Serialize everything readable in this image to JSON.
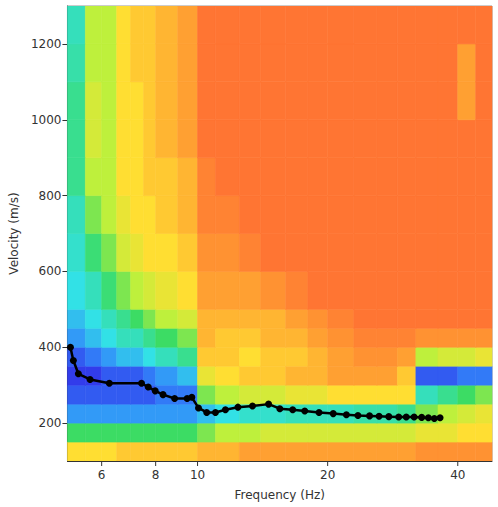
{
  "chart_data": {
    "type": "heatmap",
    "xlabel": "Frequency (Hz)",
    "ylabel": "Velocity (m/s)",
    "log": "x",
    "grid": false,
    "xlim": [
      5,
      48
    ],
    "xticks": [
      6,
      8,
      10,
      20,
      40
    ],
    "ylim": [
      100,
      1300
    ],
    "yticks": [
      200,
      400,
      600,
      800,
      1000,
      1200
    ],
    "zlim": [
      0,
      1
    ],
    "x_edges": [
      5,
      5.5,
      6,
      6.5,
      7,
      7.5,
      8,
      9,
      10,
      11,
      12.5,
      14,
      16,
      18,
      20,
      23,
      26,
      29,
      32,
      36,
      40,
      44,
      48
    ],
    "y_edges": [
      100,
      150,
      200,
      250,
      300,
      350,
      400,
      450,
      500,
      600,
      700,
      800,
      900,
      1000,
      1100,
      1200,
      1300
    ],
    "z": [
      [
        0.35,
        0.35,
        0.35,
        0.3,
        0.3,
        0.3,
        0.3,
        0.3,
        0.25,
        0.25,
        0.2,
        0.2,
        0.2,
        0.2,
        0.2,
        0.2,
        0.2,
        0.2,
        0.15,
        0.15,
        0.15,
        0.15
      ],
      [
        0.6,
        0.6,
        0.6,
        0.6,
        0.6,
        0.6,
        0.6,
        0.6,
        0.55,
        0.5,
        0.5,
        0.45,
        0.45,
        0.45,
        0.45,
        0.45,
        0.45,
        0.45,
        0.4,
        0.4,
        0.35,
        0.35
      ],
      [
        0.85,
        0.85,
        0.85,
        0.85,
        0.85,
        0.85,
        0.85,
        0.85,
        0.8,
        0.75,
        0.72,
        0.72,
        0.7,
        0.7,
        0.7,
        0.68,
        0.68,
        0.65,
        0.55,
        0.5,
        0.45,
        0.4
      ],
      [
        0.95,
        0.95,
        0.95,
        0.95,
        0.95,
        0.95,
        0.9,
        0.9,
        0.55,
        0.5,
        0.45,
        0.45,
        0.4,
        0.4,
        0.35,
        0.35,
        0.35,
        0.35,
        0.7,
        0.65,
        0.6,
        0.55
      ],
      [
        1,
        1,
        0.95,
        0.95,
        0.95,
        0.9,
        0.85,
        0.8,
        0.4,
        0.35,
        0.3,
        0.3,
        0.25,
        0.25,
        0.2,
        0.2,
        0.2,
        0.3,
        0.95,
        0.95,
        0.9,
        0.9
      ],
      [
        0.95,
        0.9,
        0.85,
        0.8,
        0.8,
        0.75,
        0.7,
        0.65,
        0.3,
        0.3,
        0.35,
        0.3,
        0.3,
        0.25,
        0.2,
        0.15,
        0.15,
        0.2,
        0.5,
        0.45,
        0.45,
        0.4
      ],
      [
        0.85,
        0.8,
        0.75,
        0.7,
        0.7,
        0.65,
        0.6,
        0.55,
        0.25,
        0.3,
        0.3,
        0.25,
        0.25,
        0.2,
        0.15,
        0.1,
        0.1,
        0.1,
        0.15,
        0.15,
        0.15,
        0.15
      ],
      [
        0.8,
        0.75,
        0.7,
        0.65,
        0.6,
        0.55,
        0.5,
        0.45,
        0.25,
        0.25,
        0.25,
        0.25,
        0.2,
        0.15,
        0.1,
        0.05,
        0.05,
        0.05,
        0.05,
        0.05,
        0.05,
        0.05
      ],
      [
        0.75,
        0.7,
        0.62,
        0.55,
        0.5,
        0.45,
        0.4,
        0.35,
        0.2,
        0.2,
        0.2,
        0.15,
        0.1,
        0.05,
        0.05,
        0.05,
        0.05,
        0.05,
        0.05,
        0.05,
        0.05,
        0.05
      ],
      [
        0.72,
        0.62,
        0.55,
        0.45,
        0.4,
        0.35,
        0.35,
        0.3,
        0.15,
        0.15,
        0.1,
        0.05,
        0.05,
        0.05,
        0.05,
        0.05,
        0.05,
        0.05,
        0.05,
        0.05,
        0.05,
        0.05
      ],
      [
        0.7,
        0.55,
        0.5,
        0.4,
        0.35,
        0.35,
        0.3,
        0.25,
        0.1,
        0.1,
        0.05,
        0.05,
        0.05,
        0.05,
        0.05,
        0.05,
        0.05,
        0.05,
        0.05,
        0.05,
        0.05,
        0.05
      ],
      [
        0.65,
        0.5,
        0.5,
        0.35,
        0.35,
        0.3,
        0.3,
        0.25,
        0.1,
        0.05,
        0.05,
        0.05,
        0.05,
        0.05,
        0.05,
        0.05,
        0.05,
        0.05,
        0.05,
        0.05,
        0.05,
        0.05
      ],
      [
        0.65,
        0.45,
        0.5,
        0.35,
        0.35,
        0.3,
        0.25,
        0.2,
        0.05,
        0.05,
        0.05,
        0.05,
        0.05,
        0.05,
        0.05,
        0.05,
        0.05,
        0.05,
        0.05,
        0.05,
        0.05,
        0.05
      ],
      [
        0.65,
        0.45,
        0.5,
        0.35,
        0.35,
        0.3,
        0.25,
        0.2,
        0.05,
        0.05,
        0.05,
        0.05,
        0.05,
        0.05,
        0.05,
        0.05,
        0.05,
        0.05,
        0.05,
        0.05,
        0.2,
        0.05
      ],
      [
        0.68,
        0.5,
        0.5,
        0.35,
        0.3,
        0.3,
        0.25,
        0.2,
        0.05,
        0.05,
        0.05,
        0.05,
        0.05,
        0.05,
        0.05,
        0.05,
        0.05,
        0.05,
        0.05,
        0.05,
        0.2,
        0.05
      ],
      [
        0.7,
        0.5,
        0.5,
        0.35,
        0.3,
        0.3,
        0.25,
        0.2,
        0.05,
        0.05,
        0.05,
        0.05,
        0.05,
        0.05,
        0.05,
        0.05,
        0.05,
        0.05,
        0.05,
        0.05,
        0.05,
        0.05
      ]
    ],
    "series": [
      {
        "type": "line",
        "color": "#000000",
        "marker": "circle",
        "x": [
          5.08,
          5.16,
          5.3,
          5.64,
          6.25,
          7.42,
          7.69,
          7.98,
          8.32,
          8.85,
          9.46,
          9.7,
          10.05,
          10.5,
          11.0,
          11.6,
          12.4,
          13.4,
          14.6,
          15.5,
          16.6,
          17.7,
          19.1,
          20.6,
          22.1,
          23.5,
          25.0,
          26.3,
          27.7,
          29.2,
          30.4,
          31.7,
          33.0,
          34.2,
          35.3,
          36.4
        ],
        "values": [
          400,
          365,
          330,
          315,
          305,
          305,
          295,
          285,
          275,
          265,
          265,
          268,
          240,
          228,
          228,
          235,
          242,
          245,
          250,
          238,
          235,
          232,
          228,
          225,
          222,
          220,
          219,
          218,
          217,
          216,
          216,
          216,
          215,
          214,
          212,
          214
        ]
      }
    ]
  }
}
